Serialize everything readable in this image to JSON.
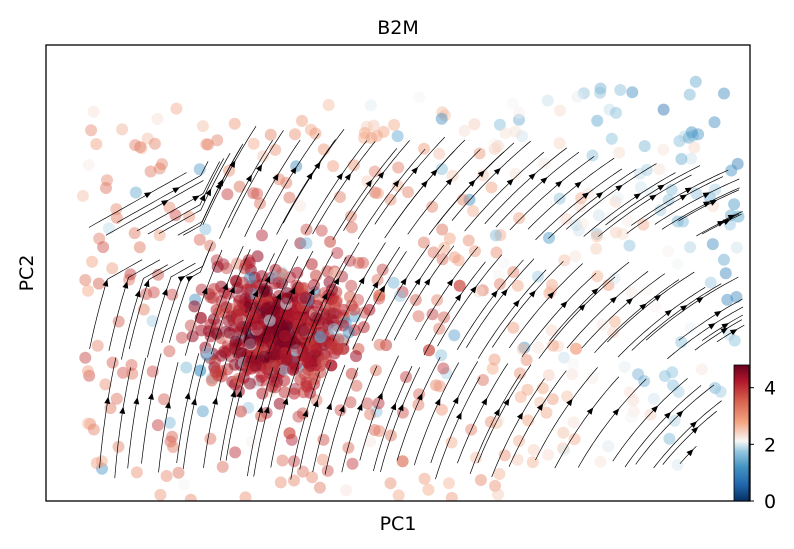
{
  "chart_data": {
    "type": "scatter",
    "title": "B2M",
    "xlabel": "PC1",
    "ylabel": "PC2",
    "x_ticks_shown": false,
    "y_ticks_shown": false,
    "grid": false,
    "overlay": "velocity streamlines with arrowheads (black), flowing mostly upward-right",
    "point_summary": {
      "dense_core": "lower-left region, high expression (~4-5)",
      "sparse_regions": "upper and right areas, mixed low/high expression (~0-4)"
    },
    "colorbar": {
      "colormap": "RdBu_r",
      "min": 0,
      "max": 4.8,
      "ticks": [
        "0",
        "2",
        "4"
      ],
      "tick_values": [
        0,
        2,
        4
      ],
      "colors": {
        "low": "#053061",
        "mid": "#f7f7f7",
        "high": "#67001f"
      }
    }
  }
}
